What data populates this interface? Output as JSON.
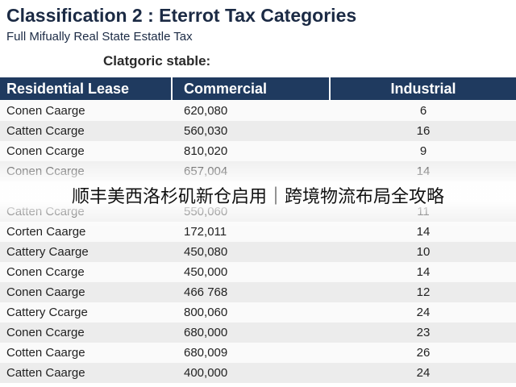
{
  "header": {
    "title": "Classification 2 : Eterrot Tax Categories",
    "subtitle": "Full Mifually Real State Estatle Tax"
  },
  "caption": "Clatgoric stable:",
  "table": {
    "columns": [
      "Residential Lease",
      "Commercial",
      "Industrial"
    ],
    "rows": [
      [
        "Conen Caarge",
        "620,080",
        6
      ],
      [
        "Catten Ccarge",
        "560,030",
        16
      ],
      [
        "Conen Ccarge",
        "810,020",
        9
      ],
      [
        "Conen Ccarge",
        "657,004",
        14
      ],
      null,
      [
        "Catten Ccarge",
        "550,060",
        11
      ],
      [
        "Corten Caarge",
        "172,011",
        14
      ],
      [
        "Cattery Caarge",
        "450,080",
        10
      ],
      [
        "Conen Ccarge",
        "450,000",
        14
      ],
      [
        "Conen Caarge",
        "466 768",
        12
      ],
      [
        "Cattery Ccarge",
        "800,060",
        24
      ],
      [
        "Conen Ccarge",
        "680,000",
        23
      ],
      [
        "Cotten Caarge",
        "680,009",
        26
      ],
      [
        "Catten Caarge",
        "400,000",
        24
      ]
    ]
  },
  "overlay": {
    "text": "顺丰美西洛杉矶新仓启用｜跨境物流布局全攻略"
  }
}
